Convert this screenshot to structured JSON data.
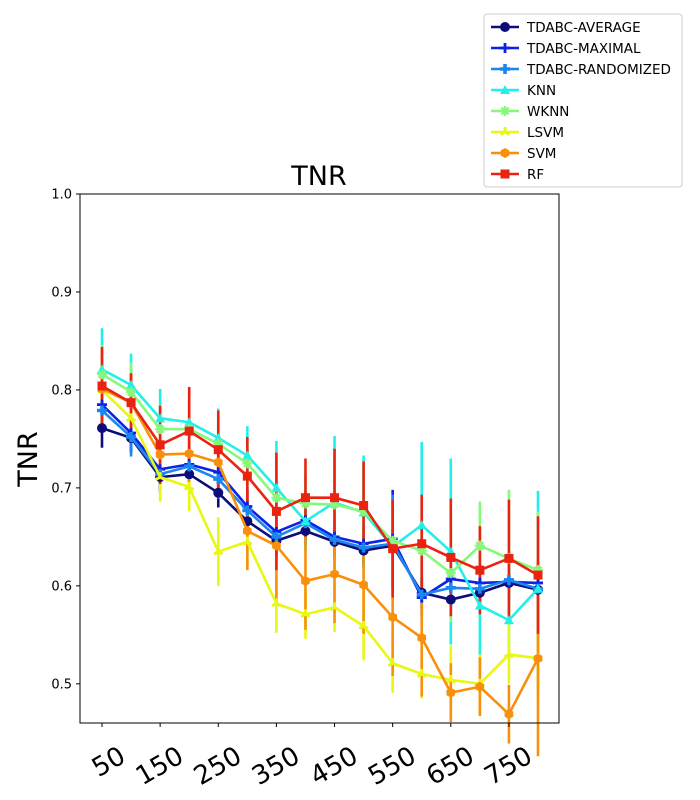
{
  "chart_data": {
    "type": "line",
    "title": "TNR",
    "xlabel": "",
    "ylabel": "TNR",
    "x": [
      50,
      100,
      150,
      200,
      250,
      300,
      350,
      400,
      450,
      500,
      550,
      600,
      650,
      700,
      750,
      800
    ],
    "xtick_labels": [
      "50",
      "150",
      "250",
      "350",
      "450",
      "550",
      "650",
      "750"
    ],
    "xtick_values": [
      50,
      150,
      250,
      350,
      450,
      550,
      650,
      750
    ],
    "ylim": [
      0.46,
      1.0
    ],
    "yticks": [
      0.5,
      0.6,
      0.7,
      0.8,
      0.9,
      1.0
    ],
    "ytick_labels": [
      "0.5",
      "0.6",
      "0.7",
      "0.8",
      "0.9",
      "1.0"
    ],
    "grid": false,
    "legend_position": "top-right",
    "series": [
      {
        "name": "TDABC-AVERAGE",
        "color": "#0c0c7a",
        "marker": "circle",
        "values": [
          0.761,
          0.751,
          0.711,
          0.714,
          0.695,
          0.666,
          0.646,
          0.656,
          0.645,
          0.636,
          0.641,
          0.593,
          0.586,
          0.593,
          0.603,
          0.596
        ],
        "errors": [
          0.02,
          0.015,
          0.015,
          0.015,
          0.015,
          0.015,
          0.015,
          0.015,
          0.015,
          0.015,
          0.015,
          0.015,
          0.015,
          0.015,
          0.015,
          0.015
        ]
      },
      {
        "name": "TDABC-MAXIMAL",
        "color": "#0c22e8",
        "marker": "plus",
        "values": [
          0.785,
          0.756,
          0.719,
          0.724,
          0.716,
          0.681,
          0.655,
          0.667,
          0.65,
          0.643,
          0.648,
          0.588,
          0.607,
          0.603,
          0.604,
          0.603
        ],
        "errors": [
          0.02,
          0.02,
          0.02,
          0.02,
          0.02,
          0.02,
          0.02,
          0.02,
          0.02,
          0.02,
          0.05,
          0.02,
          0.02,
          0.02,
          0.02,
          0.02
        ]
      },
      {
        "name": "TDABC-RANDOMIZED",
        "color": "#1a86f0",
        "marker": "cross",
        "values": [
          0.779,
          0.752,
          0.714,
          0.722,
          0.709,
          0.677,
          0.65,
          0.664,
          0.647,
          0.639,
          0.643,
          0.591,
          0.598,
          0.597,
          0.606,
          0.597
        ],
        "errors": [
          0.02,
          0.02,
          0.02,
          0.02,
          0.02,
          0.02,
          0.02,
          0.02,
          0.02,
          0.02,
          0.05,
          0.02,
          0.02,
          0.02,
          0.02,
          0.02
        ]
      },
      {
        "name": "KNN",
        "color": "#22f0e8",
        "marker": "triangle",
        "values": [
          0.821,
          0.805,
          0.771,
          0.767,
          0.751,
          0.733,
          0.7,
          0.666,
          0.685,
          0.675,
          0.64,
          0.662,
          0.635,
          0.58,
          0.565,
          0.597
        ],
        "errors": [
          0.042,
          0.032,
          0.03,
          0.03,
          0.03,
          0.03,
          0.048,
          0.03,
          0.068,
          0.058,
          0.025,
          0.085,
          0.095,
          0.07,
          0.04,
          0.1
        ]
      },
      {
        "name": "WKNN",
        "color": "#86f87a",
        "marker": "asterisk",
        "values": [
          0.816,
          0.798,
          0.76,
          0.76,
          0.745,
          0.725,
          0.69,
          0.684,
          0.683,
          0.676,
          0.646,
          0.636,
          0.613,
          0.641,
          0.628,
          0.616
        ],
        "errors": [
          0.03,
          0.03,
          0.025,
          0.03,
          0.025,
          0.02,
          0.03,
          0.03,
          0.025,
          0.05,
          0.03,
          0.04,
          0.05,
          0.045,
          0.07,
          0.06
        ]
      },
      {
        "name": "LSVM",
        "color": "#e8f812",
        "marker": "tri",
        "values": [
          0.8,
          0.771,
          0.711,
          0.701,
          0.635,
          0.645,
          0.582,
          0.571,
          0.578,
          0.559,
          0.521,
          0.51,
          0.504,
          0.5,
          0.53,
          0.526
        ],
        "errors": [
          0.02,
          0.02,
          0.025,
          0.025,
          0.035,
          0.025,
          0.03,
          0.025,
          0.025,
          0.035,
          0.03,
          0.025,
          0.035,
          0.03,
          0.03,
          0.04
        ]
      },
      {
        "name": "SVM",
        "color": "#f8900c",
        "marker": "hexagon",
        "values": [
          0.801,
          0.787,
          0.734,
          0.735,
          0.726,
          0.656,
          0.641,
          0.605,
          0.612,
          0.601,
          0.568,
          0.547,
          0.491,
          0.497,
          0.469,
          0.526
        ],
        "errors": [
          0.04,
          0.03,
          0.03,
          0.03,
          0.03,
          0.04,
          0.06,
          0.05,
          0.05,
          0.05,
          0.06,
          0.06,
          0.03,
          0.03,
          0.03,
          0.1
        ]
      },
      {
        "name": "RF",
        "color": "#ea2310",
        "marker": "square",
        "values": [
          0.804,
          0.787,
          0.744,
          0.758,
          0.739,
          0.712,
          0.676,
          0.69,
          0.69,
          0.682,
          0.638,
          0.643,
          0.629,
          0.616,
          0.628,
          0.611
        ],
        "errors": [
          0.04,
          0.03,
          0.04,
          0.045,
          0.04,
          0.04,
          0.06,
          0.04,
          0.05,
          0.045,
          0.05,
          0.05,
          0.06,
          0.045,
          0.06,
          0.06
        ]
      }
    ]
  }
}
